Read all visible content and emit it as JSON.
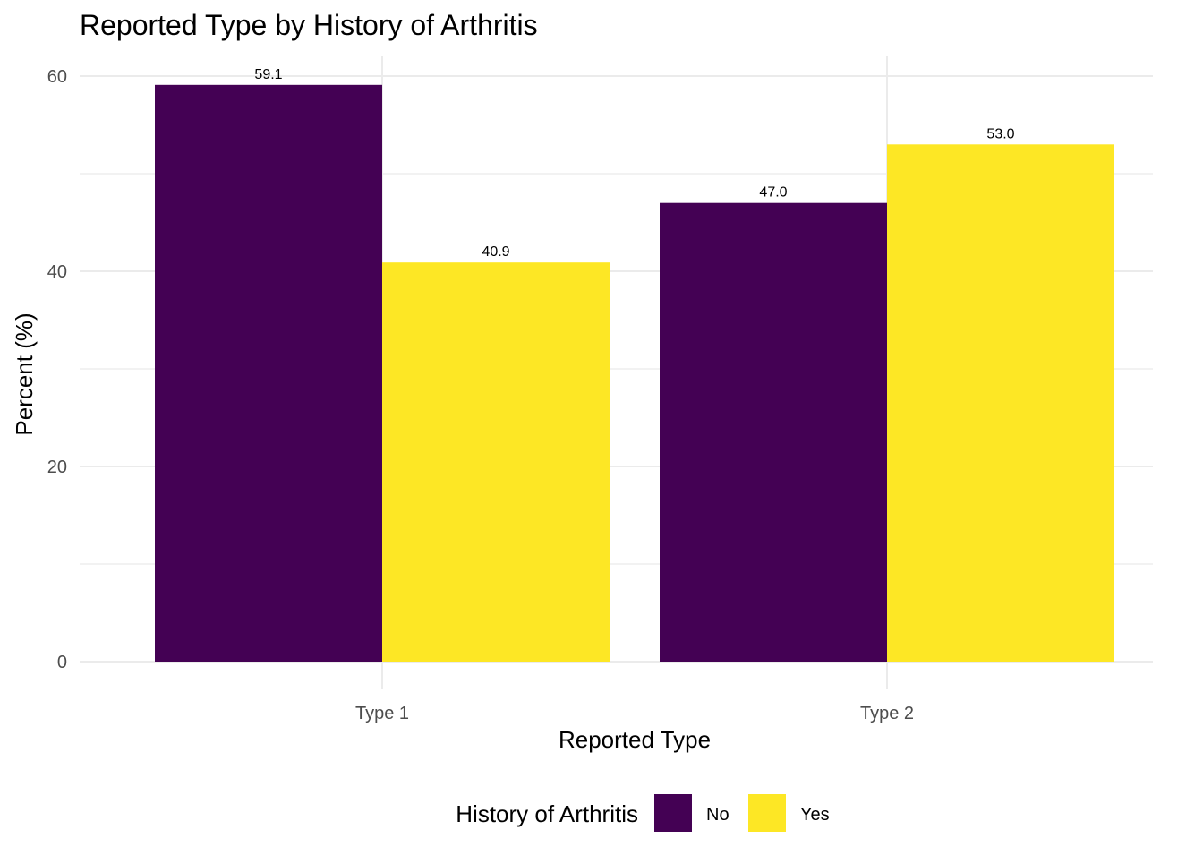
{
  "chart_data": {
    "type": "bar",
    "title": "Reported Type by History of Arthritis",
    "xlabel": "Reported Type",
    "ylabel": "Percent (%)",
    "categories": [
      "Type 1",
      "Type 2"
    ],
    "series": [
      {
        "name": "No",
        "color": "#440154",
        "values": [
          59.1,
          47.0
        ],
        "labels": [
          "59.1",
          "47.0"
        ]
      },
      {
        "name": "Yes",
        "color": "#FDE725",
        "values": [
          40.9,
          53.0
        ],
        "labels": [
          "40.9",
          "53.0"
        ]
      }
    ],
    "ylim": [
      0,
      62
    ],
    "yticks": [
      0,
      20,
      40,
      60
    ],
    "ytick_labels": [
      "0",
      "20",
      "40",
      "60"
    ],
    "grid": true,
    "legend": {
      "title": "History of Arthritis",
      "position": "bottom"
    }
  }
}
